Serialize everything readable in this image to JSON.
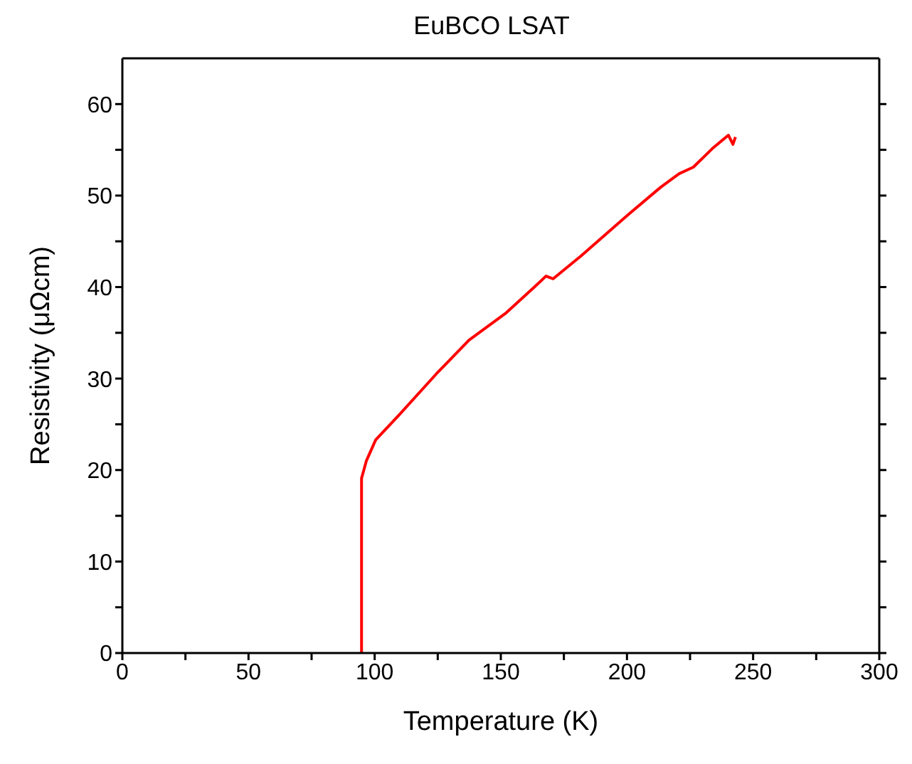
{
  "chart_data": {
    "type": "line",
    "title": "EuBCO LSAT",
    "xlabel": "Temperature (K)",
    "ylabel": "Resistivity (μΩcm)",
    "xlim": [
      0,
      300
    ],
    "ylim": [
      0,
      65
    ],
    "xticks": [
      0,
      {
        "value": 25,
        "label": null
      },
      50,
      {
        "value": 75,
        "label": null
      },
      100,
      {
        "value": 125,
        "label": null
      },
      150,
      {
        "value": 175,
        "label": null
      },
      200,
      {
        "value": 225,
        "label": null
      },
      250,
      {
        "value": 275,
        "label": null
      },
      300
    ],
    "yticks": [
      0,
      {
        "value": 5,
        "label": null
      },
      10,
      {
        "value": 15,
        "label": null
      },
      20,
      {
        "value": 25,
        "label": null
      },
      30,
      {
        "value": 35,
        "label": null
      },
      40,
      {
        "value": 45,
        "label": null
      },
      50,
      {
        "value": 55,
        "label": null
      },
      60
    ],
    "marker": "none",
    "line_style": "solid",
    "series": [
      {
        "color": "#ff0000",
        "x": [
          94.8,
          94.8,
          96.7,
          100.4,
          109.6,
          124.4,
          137.4,
          152.2,
          163.3,
          167.9,
          170.7,
          181.8,
          200.4,
          213.3,
          220.7,
          226.3,
          233.7,
          240.2,
          242,
          243
        ],
        "values": [
          0,
          19.1,
          21,
          23.3,
          26,
          30.5,
          34.2,
          37.2,
          40.0,
          41.2,
          40.9,
          43.4,
          47.9,
          50.9,
          52.4,
          53.1,
          55.1,
          56.6,
          55.6,
          56.4
        ]
      }
    ]
  }
}
